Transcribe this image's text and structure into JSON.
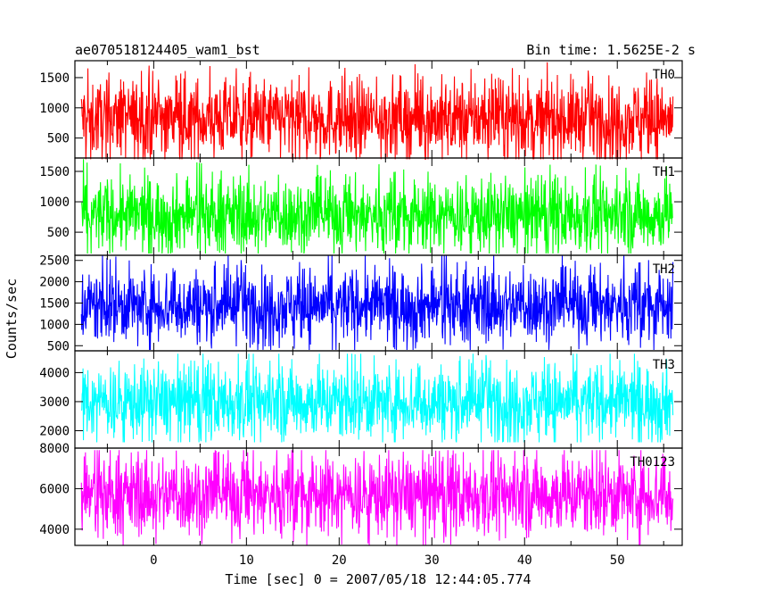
{
  "header": {
    "title": "ae070518124405_wam1_bst",
    "bin_time": "Bin time: 1.5625E-2 s"
  },
  "chart_data": {
    "type": "line",
    "title": "ae070518124405_wam1_bst",
    "xlabel": "Time [sec] 0 = 2007/05/18 12:44:05.774",
    "ylabel": "Counts/sec",
    "xlim": [
      -8.5,
      57
    ],
    "x_ticks": [
      0,
      10,
      20,
      30,
      40,
      50
    ],
    "data_range": [
      -7.8,
      56
    ],
    "grid": false,
    "legend": "none",
    "panels": [
      {
        "name": "TH0",
        "color": "#ff0000",
        "ylim": [
          170,
          1780
        ],
        "y_ticks": [
          500,
          1000,
          1500
        ],
        "mean": 820,
        "low": 280,
        "high": 1450,
        "min": 150,
        "max": 1780
      },
      {
        "name": "TH1",
        "color": "#00ff00",
        "ylim": [
          120,
          1720
        ],
        "y_ticks": [
          500,
          1000,
          1500
        ],
        "mean": 780,
        "low": 250,
        "high": 1350,
        "min": 150,
        "max": 1720
      },
      {
        "name": "TH2",
        "color": "#0000ff",
        "ylim": [
          380,
          2620
        ],
        "y_ticks": [
          500,
          1000,
          1500,
          2000,
          2500
        ],
        "mean": 1450,
        "low": 700,
        "high": 2250,
        "min": 400,
        "max": 2620
      },
      {
        "name": "TH3",
        "color": "#00ffff",
        "ylim": [
          1400,
          4750
        ],
        "y_ticks": [
          2000,
          3000,
          4000
        ],
        "mean": 3000,
        "low": 1850,
        "high": 4200,
        "min": 1600,
        "max": 4650
      },
      {
        "name": "TH0123",
        "color": "#ff00ff",
        "ylim": [
          3200,
          8000
        ],
        "y_ticks": [
          4000,
          6000,
          8000
        ],
        "mean": 5700,
        "low": 3900,
        "high": 7500,
        "min": 3200,
        "max": 7900
      }
    ]
  }
}
